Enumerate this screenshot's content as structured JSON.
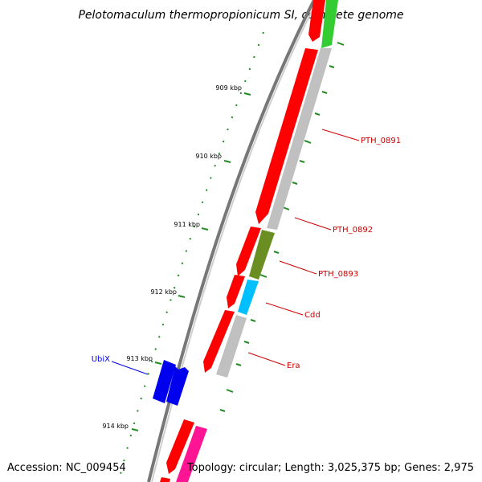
{
  "title": "Pelotomaculum thermopropionicum SI, complete genome",
  "footer": {
    "accession": "Accession: NC_009454",
    "summary": "Topology: circular; Length: 3,025,375 bp; Genes: 2,975"
  },
  "scale_ticks": [
    "909 kbp",
    "910 kbp",
    "911 kbp",
    "912 kbp",
    "913 kbp",
    "914 kbp"
  ],
  "gene_labels": {
    "pth0891": "PTH_0891",
    "pth0892": "PTH_0892",
    "pth0893": "PTH_0893",
    "cdd": "Cdd",
    "era": "Era",
    "ubix": "UbiX"
  },
  "colors": {
    "cds_red": "#ff0000",
    "rna_grey": "#c0c0c0",
    "ubix_blue": "#0000ee",
    "green": "#33cc33",
    "olive": "#6b8e23",
    "cyan": "#00bfff",
    "pink": "#ff1493",
    "label_red": "#cc0000",
    "tick_green": "#007700"
  }
}
